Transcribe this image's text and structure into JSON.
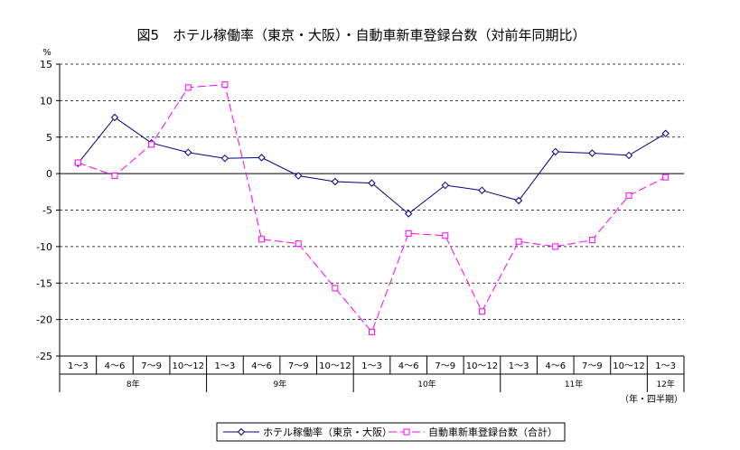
{
  "chart_data": {
    "type": "line",
    "title": "図5　ホテル稼働率（東京・大阪）・自動車新車登録台数（対前年同期比）",
    "ylabel": "%",
    "xunit": "（年・四半期）",
    "ylim": [
      -25,
      15
    ],
    "ytick_step": 5,
    "grid": true,
    "legend_position": "bottom",
    "categories": [
      "1～3",
      "4～6",
      "7～9",
      "10～12",
      "1～3",
      "4～6",
      "7～9",
      "10～12",
      "1～3",
      "4～6",
      "7～9",
      "10～12",
      "1～3",
      "4～6",
      "7～9",
      "10～12",
      "1～3"
    ],
    "year_groups": [
      {
        "label": "8年",
        "count": 4
      },
      {
        "label": "9年",
        "count": 4
      },
      {
        "label": "10年",
        "count": 4
      },
      {
        "label": "11年",
        "count": 4
      },
      {
        "label": "12年",
        "count": 1
      }
    ],
    "series": [
      {
        "name": "ホテル稼働率（東京・大阪）",
        "color": "#000080",
        "marker": "diamond",
        "dash": "solid",
        "values": [
          1.4,
          7.7,
          4.2,
          2.9,
          2.1,
          2.2,
          -0.3,
          -1.1,
          -1.3,
          -5.5,
          -1.6,
          -2.3,
          -3.7,
          3.0,
          2.8,
          2.5,
          5.5
        ]
      },
      {
        "name": "自動車新車登録台数（合計）",
        "color": "#ff00ff",
        "marker": "square",
        "dash": "dashed",
        "values": [
          1.5,
          -0.3,
          4.0,
          11.8,
          12.2,
          -9.0,
          -9.6,
          -15.7,
          -21.7,
          -8.2,
          -8.5,
          -18.9,
          -9.3,
          -10.0,
          -9.1,
          -3.0,
          -0.5
        ]
      }
    ]
  }
}
